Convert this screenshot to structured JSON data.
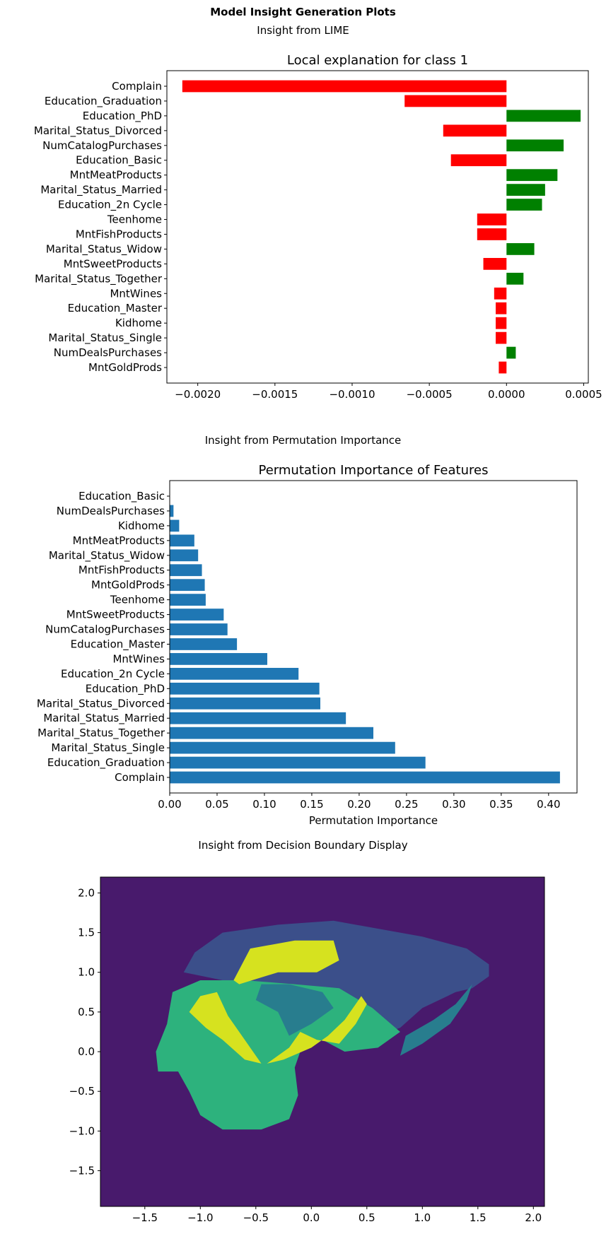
{
  "page": {
    "title": "Model Insight Generation Plots",
    "sections": {
      "lime": "Insight from LIME",
      "permutation": "Insight from Permutation Importance",
      "boundary": "Insight from Decision Boundary Display"
    }
  },
  "chart_data": [
    {
      "type": "bar",
      "orientation": "horizontal",
      "title": "Local explanation for class 1",
      "xlabel": "",
      "ylabel": "",
      "xlim": [
        -0.0022,
        0.00053
      ],
      "xticks": [
        -0.002,
        -0.0015,
        -0.001,
        -0.0005,
        0.0,
        0.0005
      ],
      "xtick_labels": [
        "−0.0020",
        "−0.0015",
        "−0.0010",
        "−0.0005",
        "0.0000",
        "0.0005"
      ],
      "colors": {
        "positive": "#008000",
        "negative": "#ff0000"
      },
      "categories": [
        "Complain",
        "Education_Graduation",
        "Education_PhD",
        "Marital_Status_Divorced",
        "NumCatalogPurchases",
        "Education_Basic",
        "MntMeatProducts",
        "Marital_Status_Married",
        "Education_2n Cycle",
        "Teenhome",
        "MntFishProducts",
        "Marital_Status_Widow",
        "MntSweetProducts",
        "Marital_Status_Together",
        "MntWines",
        "Education_Master",
        "Kidhome",
        "Marital_Status_Single",
        "NumDealsPurchases",
        "MntGoldProds"
      ],
      "values": [
        -0.0021,
        -0.00066,
        0.00048,
        -0.00041,
        0.00037,
        -0.00036,
        0.00033,
        0.00025,
        0.00023,
        -0.00019,
        -0.00019,
        0.00018,
        -0.00015,
        0.00011,
        -8e-05,
        -7e-05,
        -7e-05,
        -7e-05,
        6e-05,
        -5e-05
      ]
    },
    {
      "type": "bar",
      "orientation": "horizontal",
      "title": "Permutation Importance of Features",
      "xlabel": "Permutation Importance",
      "ylabel": "",
      "xlim": [
        0.0,
        0.43
      ],
      "xticks": [
        0.0,
        0.05,
        0.1,
        0.15,
        0.2,
        0.25,
        0.3,
        0.35,
        0.4
      ],
      "xtick_labels": [
        "0.00",
        "0.05",
        "0.10",
        "0.15",
        "0.20",
        "0.25",
        "0.30",
        "0.35",
        "0.40"
      ],
      "color": "#1f77b4",
      "categories": [
        "Education_Basic",
        "NumDealsPurchases",
        "Kidhome",
        "MntMeatProducts",
        "Marital_Status_Widow",
        "MntFishProducts",
        "MntGoldProds",
        "Teenhome",
        "MntSweetProducts",
        "NumCatalogPurchases",
        "Education_Master",
        "MntWines",
        "Education_2n Cycle",
        "Education_PhD",
        "Marital_Status_Divorced",
        "Marital_Status_Married",
        "Marital_Status_Together",
        "Marital_Status_Single",
        "Education_Graduation",
        "Complain"
      ],
      "values": [
        0.0,
        0.004,
        0.01,
        0.026,
        0.03,
        0.034,
        0.037,
        0.038,
        0.057,
        0.061,
        0.071,
        0.103,
        0.136,
        0.158,
        0.159,
        0.186,
        0.215,
        0.238,
        0.27,
        0.412
      ]
    },
    {
      "type": "heatmap",
      "title": "",
      "xlabel": "",
      "ylabel": "",
      "xlim": [
        -1.9,
        2.1
      ],
      "ylim": [
        -1.95,
        2.2
      ],
      "xticks": [
        -1.5,
        -1.0,
        -0.5,
        0.0,
        0.5,
        1.0,
        1.5,
        2.0
      ],
      "xtick_labels": [
        "−1.5",
        "−1.0",
        "−0.5",
        "0.0",
        "0.5",
        "1.0",
        "1.5",
        "2.0"
      ],
      "yticks": [
        -1.5,
        -1.0,
        -0.5,
        0.0,
        0.5,
        1.0,
        1.5,
        2.0
      ],
      "ytick_labels": [
        "−1.5",
        "−1.0",
        "−0.5",
        "0.0",
        "0.5",
        "1.0",
        "1.5",
        "2.0"
      ],
      "colors": {
        "background": "#481a6c",
        "level1": "#3b4f8a",
        "level2": "#287d8e",
        "level3": "#2db27d",
        "level4": "#d6e21f"
      },
      "regions": [
        {
          "level": "level1",
          "points": [
            [
              -1.15,
              1.0
            ],
            [
              -1.05,
              1.25
            ],
            [
              -0.8,
              1.5
            ],
            [
              -0.3,
              1.6
            ],
            [
              0.2,
              1.65
            ],
            [
              0.6,
              1.55
            ],
            [
              1.0,
              1.45
            ],
            [
              1.4,
              1.3
            ],
            [
              1.6,
              1.1
            ],
            [
              1.6,
              0.95
            ],
            [
              1.45,
              0.8
            ],
            [
              1.3,
              0.75
            ],
            [
              1.0,
              0.55
            ],
            [
              0.8,
              0.3
            ],
            [
              0.6,
              0.2
            ],
            [
              0.4,
              0.35
            ],
            [
              0.1,
              0.6
            ],
            [
              -0.3,
              0.85
            ],
            [
              -0.8,
              0.9
            ]
          ]
        },
        {
          "level": "level3",
          "points": [
            [
              -1.4,
              0.0
            ],
            [
              -1.3,
              0.35
            ],
            [
              -1.25,
              0.75
            ],
            [
              -1.0,
              0.9
            ],
            [
              -0.6,
              0.9
            ],
            [
              -0.15,
              0.85
            ],
            [
              0.25,
              0.8
            ],
            [
              0.55,
              0.55
            ],
            [
              0.8,
              0.25
            ],
            [
              0.6,
              0.05
            ],
            [
              0.3,
              0.0
            ],
            [
              0.1,
              0.15
            ],
            [
              -0.1,
              0.0
            ],
            [
              -0.15,
              -0.2
            ],
            [
              -0.12,
              -0.55
            ],
            [
              -0.2,
              -0.85
            ],
            [
              -0.45,
              -0.98
            ],
            [
              -0.8,
              -0.98
            ],
            [
              -1.0,
              -0.8
            ],
            [
              -1.1,
              -0.5
            ],
            [
              -1.2,
              -0.25
            ],
            [
              -1.38,
              -0.25
            ]
          ]
        },
        {
          "level": "level2",
          "points": [
            [
              -0.5,
              0.65
            ],
            [
              -0.3,
              0.5
            ],
            [
              -0.2,
              0.2
            ],
            [
              0.0,
              0.35
            ],
            [
              0.2,
              0.55
            ],
            [
              0.1,
              0.75
            ],
            [
              -0.2,
              0.85
            ],
            [
              -0.45,
              0.85
            ]
          ]
        },
        {
          "level": "level2",
          "points": [
            [
              0.85,
              0.2
            ],
            [
              1.1,
              0.4
            ],
            [
              1.3,
              0.6
            ],
            [
              1.45,
              0.85
            ],
            [
              1.4,
              0.65
            ],
            [
              1.25,
              0.35
            ],
            [
              1.0,
              0.1
            ],
            [
              0.8,
              -0.05
            ]
          ]
        },
        {
          "level": "level4",
          "points": [
            [
              -0.7,
              0.9
            ],
            [
              -0.55,
              1.3
            ],
            [
              -0.15,
              1.4
            ],
            [
              0.2,
              1.4
            ],
            [
              0.25,
              1.15
            ],
            [
              0.05,
              1.0
            ],
            [
              -0.3,
              1.0
            ],
            [
              -0.65,
              0.85
            ]
          ]
        },
        {
          "level": "level4",
          "points": [
            [
              -1.1,
              0.5
            ],
            [
              -1.0,
              0.7
            ],
            [
              -0.85,
              0.75
            ],
            [
              -0.75,
              0.45
            ],
            [
              -0.6,
              0.15
            ],
            [
              -0.5,
              -0.05
            ],
            [
              -0.45,
              -0.15
            ],
            [
              -0.6,
              -0.1
            ],
            [
              -0.8,
              0.15
            ],
            [
              -0.95,
              0.3
            ]
          ]
        },
        {
          "level": "level4",
          "points": [
            [
              -0.4,
              -0.15
            ],
            [
              -0.2,
              0.05
            ],
            [
              -0.1,
              0.25
            ],
            [
              0.05,
              0.15
            ],
            [
              0.25,
              0.1
            ],
            [
              0.4,
              0.35
            ],
            [
              0.5,
              0.6
            ],
            [
              0.45,
              0.7
            ],
            [
              0.3,
              0.4
            ],
            [
              0.15,
              0.2
            ],
            [
              0.0,
              0.05
            ],
            [
              -0.25,
              -0.1
            ]
          ]
        }
      ]
    }
  ]
}
